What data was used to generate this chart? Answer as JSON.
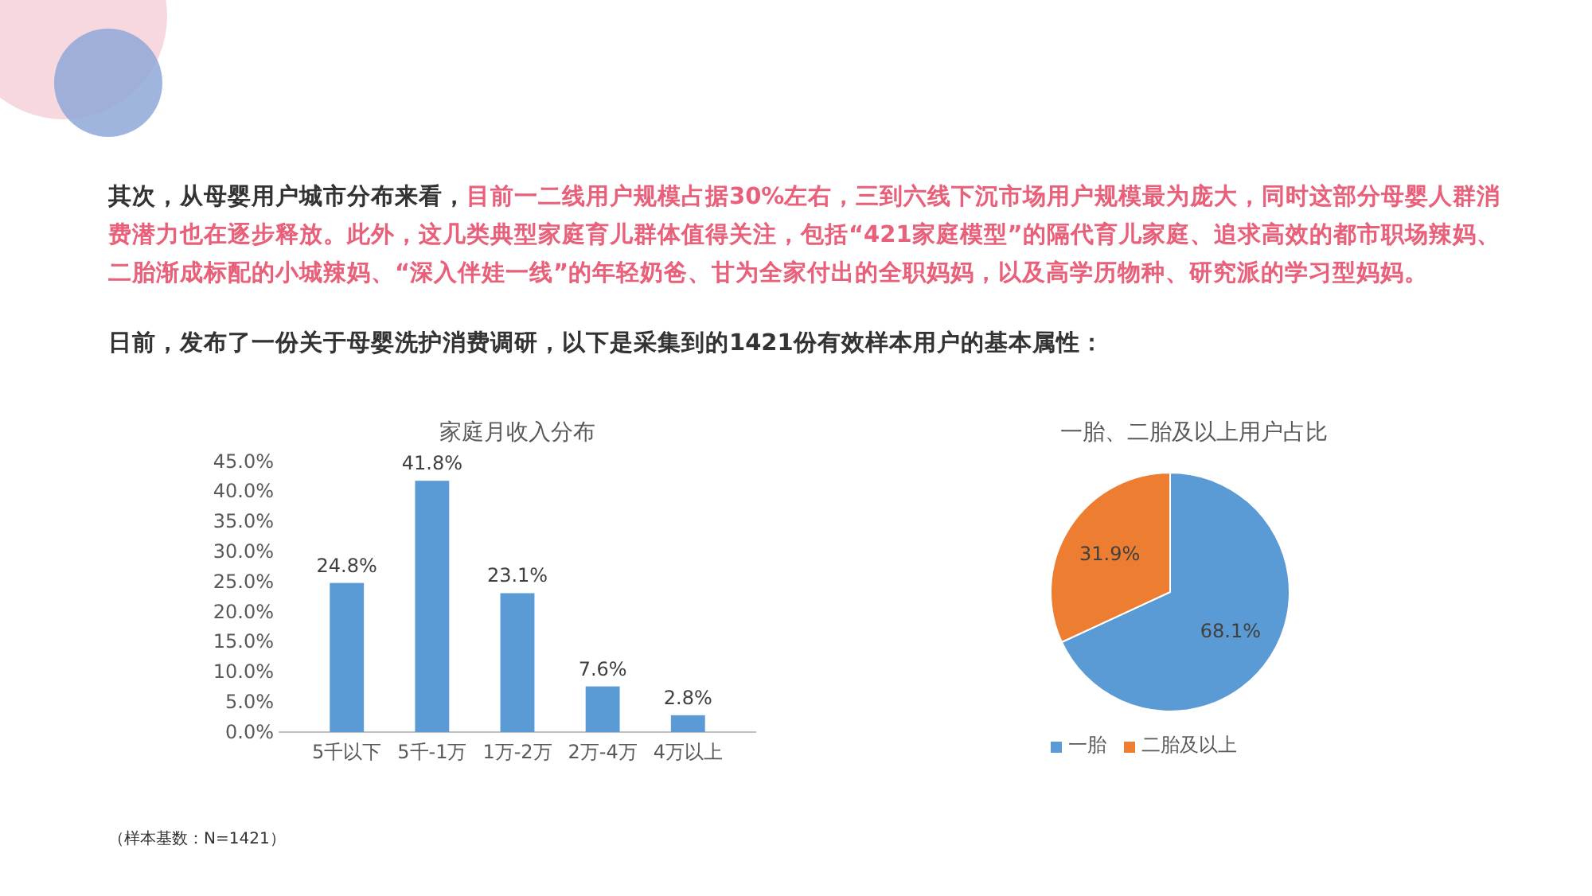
{
  "chart_data": [
    {
      "type": "bar",
      "title": "家庭月收入分布",
      "categories": [
        "5千以下",
        "5千-1万",
        "1万-2万",
        "2万-4万",
        "4万以上"
      ],
      "values": [
        24.8,
        41.8,
        23.1,
        7.6,
        2.8
      ],
      "value_labels": [
        "24.8%",
        "41.8%",
        "23.1%",
        "7.6%",
        "2.8%"
      ],
      "color": "#5b9bd5",
      "ylim": [
        0,
        45
      ],
      "yticks": [
        {
          "value": 0,
          "label": "0.0%"
        },
        {
          "value": 5,
          "label": "5.0%"
        },
        {
          "value": 10,
          "label": "10.0%"
        },
        {
          "value": 15,
          "label": "15.0%"
        },
        {
          "value": 20,
          "label": "20.0%"
        },
        {
          "value": 25,
          "label": "25.0%"
        },
        {
          "value": 30,
          "label": "30.0%"
        },
        {
          "value": 35,
          "label": "35.0%"
        },
        {
          "value": 40,
          "label": "40.0%"
        },
        {
          "value": 45,
          "label": "45.0%"
        }
      ],
      "grid": false,
      "annotations": [
        "其次，从母婴用户城市分布来看，",
        "目前一二线用户规模占据30%左右，三到六线下沉市场用户规模最为庞大，同时这部分母婴人群消费潜力也在逐步释放。此外，这几类典型家庭育儿群体值得关注，包括“421家庭模型”的隔代育儿家庭、追求高效的都市职场辣妈、二胎渐成标配的小城辣妈、“深入伴娃一线”的年轻奶爸、甘为全家付出的全职妈妈，以及高学历物种、研究派的学习型妈妈。",
        "日前，发布了一份关于母婴洗护消费调研，以下是采集到的1421份有效样本用户的基本属性：",
        "（样本基数：N=1421）"
      ]
    },
    {
      "type": "pie",
      "title": "一胎、二胎及以上用户占比",
      "categories": [
        "一胎",
        "二胎及以上"
      ],
      "values": [
        68.1,
        31.9
      ],
      "value_labels": [
        "68.1%",
        "31.9%"
      ],
      "colors": [
        "#5b9bd5",
        "#ed7d31"
      ],
      "legend": "bottom"
    }
  ]
}
